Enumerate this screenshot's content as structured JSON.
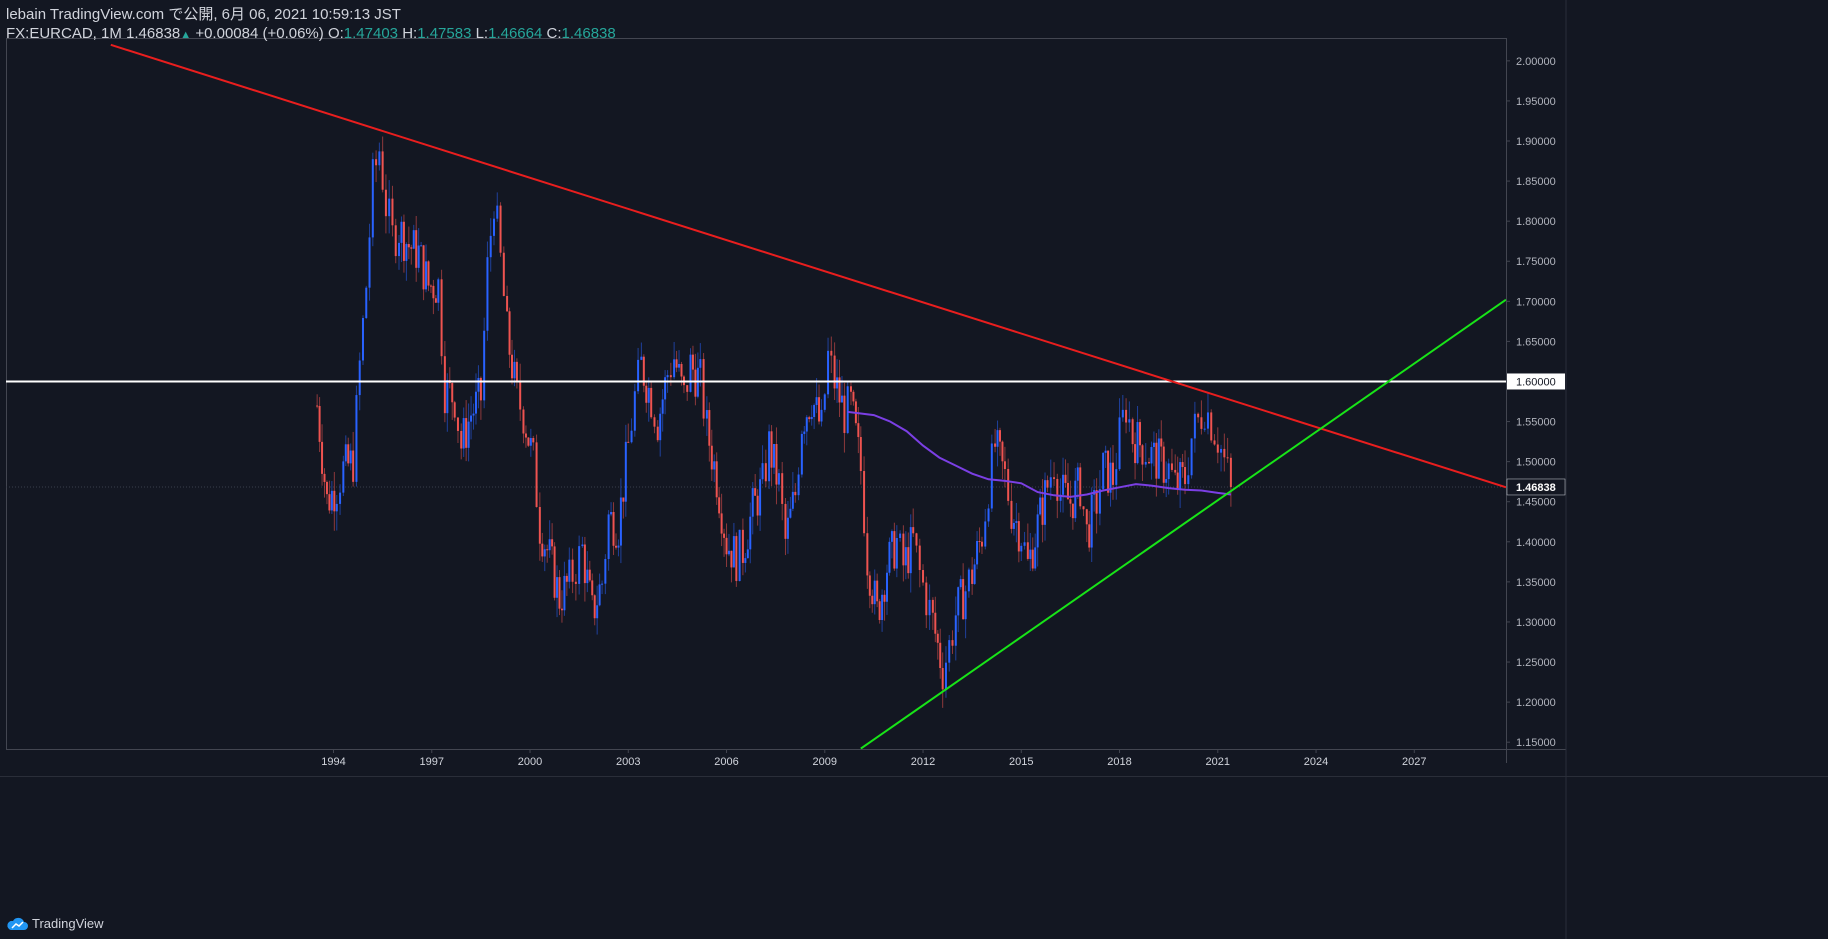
{
  "header": {
    "line1": "lebain TradingView.com で公開, 6月 06, 2021 10:59:13 JST",
    "symbol_tf": "FX:EURCAD, 1M",
    "last": "1.46838",
    "change": "+0.00084 (+0.06%)",
    "o_label": "O:",
    "o_value": "1.47403",
    "h_label": "H:",
    "h_value": "1.47583",
    "l_label": "L:",
    "l_value": "1.46664",
    "c_label": "C:",
    "c_value": "1.46838"
  },
  "footer": {
    "brand": "TradingView"
  },
  "colors": {
    "background": "#131722",
    "up": "#2962ff",
    "down": "#ef5350",
    "resistance": "#e91e1e",
    "support": "#18e418",
    "level": "#ffffff",
    "ma": "#7b3fe4"
  },
  "chart_data": {
    "type": "candlestick",
    "symbol": "FX:EURCAD",
    "interval": "1M",
    "x_ticks": [
      "1994",
      "1997",
      "2000",
      "2003",
      "2006",
      "2009",
      "2012",
      "2015",
      "2018",
      "2021",
      "2024",
      "2027"
    ],
    "x_tick_years": [
      1994,
      1997,
      2000,
      2003,
      2006,
      2009,
      2012,
      2015,
      2018,
      2021,
      2024,
      2027
    ],
    "y_ticks": [
      "1.15000",
      "1.20000",
      "1.25000",
      "1.30000",
      "1.35000",
      "1.40000",
      "1.45000",
      "1.50000",
      "1.55000",
      "1.60000",
      "1.65000",
      "1.70000",
      "1.75000",
      "1.80000",
      "1.85000",
      "1.90000",
      "1.95000",
      "2.00000"
    ],
    "y_tick_values": [
      1.15,
      1.2,
      1.25,
      1.3,
      1.35,
      1.4,
      1.45,
      1.5,
      1.55,
      1.6,
      1.65,
      1.7,
      1.75,
      1.8,
      1.85,
      1.9,
      1.95,
      2.0
    ],
    "x_range": [
      1984.0,
      2029.8
    ],
    "y_range": [
      1.1415,
      2.0285
    ],
    "current_price_label": "1.46838",
    "current_price": 1.46838,
    "level_label": "1.60000",
    "level": 1.6,
    "closes": [
      [
        1993.5,
        1.57
      ],
      [
        1993.8,
        1.45
      ],
      [
        1994.1,
        1.47
      ],
      [
        1994.3,
        1.49
      ],
      [
        1994.6,
        1.5
      ],
      [
        1994.8,
        1.62
      ],
      [
        1995.0,
        1.72
      ],
      [
        1995.2,
        1.85
      ],
      [
        1995.4,
        1.89
      ],
      [
        1995.6,
        1.82
      ],
      [
        1995.8,
        1.78
      ],
      [
        1996.0,
        1.79
      ],
      [
        1996.3,
        1.77
      ],
      [
        1996.6,
        1.76
      ],
      [
        1996.9,
        1.72
      ],
      [
        1997.2,
        1.72
      ],
      [
        1997.4,
        1.59
      ],
      [
        1997.7,
        1.58
      ],
      [
        1997.9,
        1.52
      ],
      [
        1998.2,
        1.56
      ],
      [
        1998.5,
        1.58
      ],
      [
        1998.7,
        1.74
      ],
      [
        1998.9,
        1.83
      ],
      [
        1999.1,
        1.75
      ],
      [
        1999.3,
        1.66
      ],
      [
        1999.6,
        1.58
      ],
      [
        1999.8,
        1.56
      ],
      [
        2000.1,
        1.5
      ],
      [
        2000.3,
        1.42
      ],
      [
        2000.6,
        1.38
      ],
      [
        2000.9,
        1.33
      ],
      [
        2001.2,
        1.35
      ],
      [
        2001.4,
        1.37
      ],
      [
        2001.6,
        1.39
      ],
      [
        2001.9,
        1.31
      ],
      [
        2002.2,
        1.35
      ],
      [
        2002.4,
        1.43
      ],
      [
        2002.7,
        1.42
      ],
      [
        2003.0,
        1.52
      ],
      [
        2003.2,
        1.58
      ],
      [
        2003.4,
        1.62
      ],
      [
        2003.7,
        1.58
      ],
      [
        2003.9,
        1.55
      ],
      [
        2004.2,
        1.61
      ],
      [
        2004.4,
        1.63
      ],
      [
        2004.7,
        1.58
      ],
      [
        2004.9,
        1.62
      ],
      [
        2005.2,
        1.6
      ],
      [
        2005.4,
        1.54
      ],
      [
        2005.7,
        1.48
      ],
      [
        2006.0,
        1.4
      ],
      [
        2006.3,
        1.38
      ],
      [
        2006.5,
        1.39
      ],
      [
        2006.8,
        1.44
      ],
      [
        2007.1,
        1.47
      ],
      [
        2007.3,
        1.52
      ],
      [
        2007.6,
        1.47
      ],
      [
        2007.8,
        1.4
      ],
      [
        2008.1,
        1.46
      ],
      [
        2008.3,
        1.55
      ],
      [
        2008.6,
        1.58
      ],
      [
        2008.9,
        1.54
      ],
      [
        2009.1,
        1.63
      ],
      [
        2009.3,
        1.6
      ],
      [
        2009.6,
        1.56
      ],
      [
        2009.8,
        1.57
      ],
      [
        2010.1,
        1.49
      ],
      [
        2010.3,
        1.38
      ],
      [
        2010.6,
        1.31
      ],
      [
        2010.9,
        1.37
      ],
      [
        2011.2,
        1.4
      ],
      [
        2011.4,
        1.37
      ],
      [
        2011.7,
        1.4
      ],
      [
        2011.9,
        1.36
      ],
      [
        2012.1,
        1.33
      ],
      [
        2012.3,
        1.3
      ],
      [
        2012.6,
        1.24
      ],
      [
        2012.8,
        1.27
      ],
      [
        2013.0,
        1.31
      ],
      [
        2013.3,
        1.34
      ],
      [
        2013.5,
        1.36
      ],
      [
        2013.8,
        1.41
      ],
      [
        2014.0,
        1.47
      ],
      [
        2014.2,
        1.52
      ],
      [
        2014.5,
        1.48
      ],
      [
        2014.7,
        1.44
      ],
      [
        2015.0,
        1.41
      ],
      [
        2015.2,
        1.37
      ],
      [
        2015.5,
        1.42
      ],
      [
        2015.8,
        1.47
      ],
      [
        2016.0,
        1.5
      ],
      [
        2016.2,
        1.46
      ],
      [
        2016.5,
        1.45
      ],
      [
        2016.8,
        1.47
      ],
      [
        2017.0,
        1.41
      ],
      [
        2017.3,
        1.45
      ],
      [
        2017.5,
        1.49
      ],
      [
        2017.8,
        1.48
      ],
      [
        2018.0,
        1.53
      ],
      [
        2018.2,
        1.57
      ],
      [
        2018.4,
        1.53
      ],
      [
        2018.7,
        1.52
      ],
      [
        2018.9,
        1.51
      ],
      [
        2019.2,
        1.5
      ],
      [
        2019.5,
        1.49
      ],
      [
        2019.7,
        1.47
      ],
      [
        2020.0,
        1.48
      ],
      [
        2020.2,
        1.53
      ],
      [
        2020.4,
        1.55
      ],
      [
        2020.6,
        1.57
      ],
      [
        2020.8,
        1.55
      ],
      [
        2021.0,
        1.53
      ],
      [
        2021.2,
        1.5
      ],
      [
        2021.4,
        1.47
      ]
    ],
    "moving_average": [
      [
        2009.7,
        1.562
      ],
      [
        2010.5,
        1.558
      ],
      [
        2011.0,
        1.55
      ],
      [
        2011.5,
        1.538
      ],
      [
        2012.0,
        1.52
      ],
      [
        2012.5,
        1.505
      ],
      [
        2013.0,
        1.495
      ],
      [
        2013.5,
        1.485
      ],
      [
        2014.0,
        1.478
      ],
      [
        2014.5,
        1.476
      ],
      [
        2015.0,
        1.473
      ],
      [
        2015.5,
        1.462
      ],
      [
        2016.0,
        1.458
      ],
      [
        2016.5,
        1.456
      ],
      [
        2017.0,
        1.459
      ],
      [
        2017.5,
        1.464
      ],
      [
        2018.0,
        1.468
      ],
      [
        2018.5,
        1.472
      ],
      [
        2019.0,
        1.47
      ],
      [
        2019.5,
        1.467
      ],
      [
        2020.0,
        1.465
      ],
      [
        2020.5,
        1.464
      ],
      [
        2021.0,
        1.461
      ],
      [
        2021.4,
        1.459
      ]
    ],
    "trendlines": [
      {
        "name": "resistance",
        "p1": [
          1987.2,
          2.02
        ],
        "p2": [
          2029.8,
          1.468
        ]
      },
      {
        "name": "support",
        "p1": [
          2010.1,
          1.142
        ],
        "p2": [
          2029.8,
          1.702
        ]
      }
    ]
  }
}
